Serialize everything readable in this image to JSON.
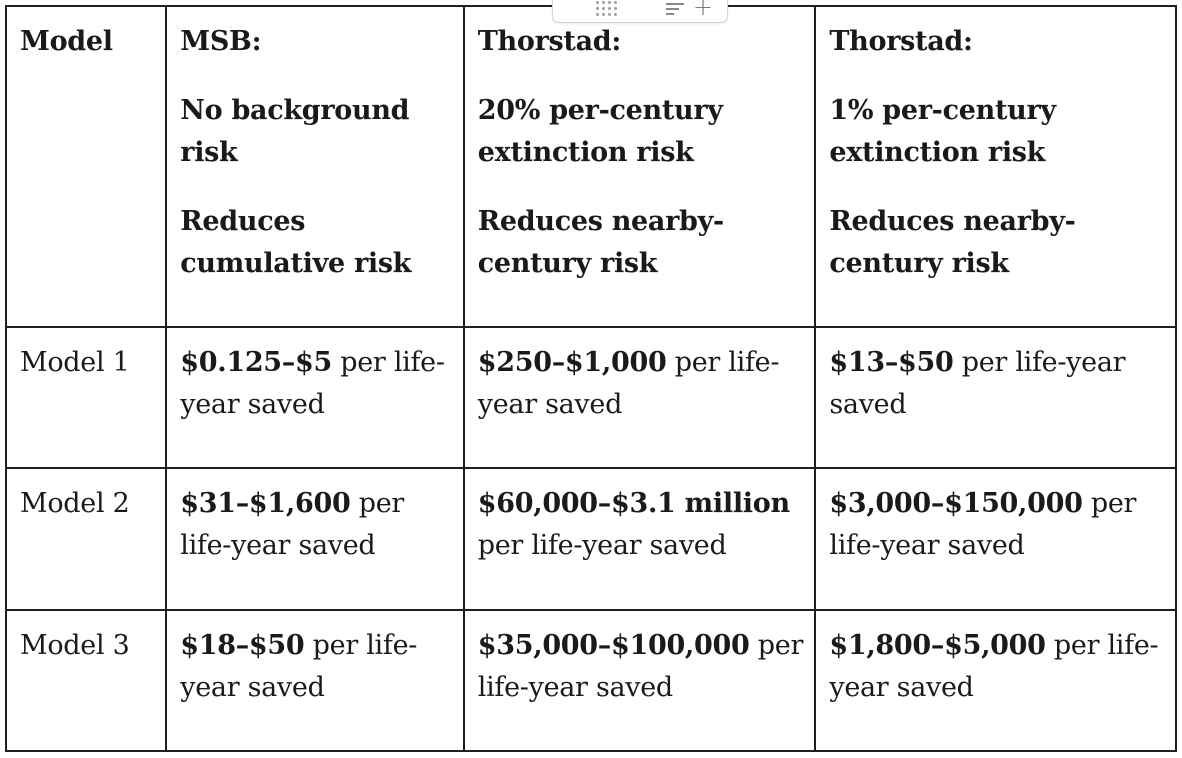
{
  "toolbar": {
    "drag_icon": "drag-handle-icon",
    "align_icon": "align-left-icon",
    "add_icon": "plus-icon",
    "add_glyph": "+"
  },
  "table": {
    "header": {
      "model": "Model",
      "msb": {
        "title": "MSB:",
        "line1": "No background risk",
        "line2": "Reduces cumulative risk"
      },
      "thorstad_20": {
        "title": "Thorstad:",
        "line1": "20% per-century extinction risk",
        "line2": "Reduces nearby-century risk"
      },
      "thorstad_1": {
        "title": "Thorstad:",
        "line1": "1% per-century extinction risk",
        "line2": "Reduces nearby-century risk"
      }
    },
    "rows": [
      {
        "label": "Model 1",
        "msb": {
          "bold": "$0.125–$5",
          "rest": " per life-year saved"
        },
        "thorstad_20": {
          "bold": "$250–$1,000",
          "rest": " per life-year saved"
        },
        "thorstad_1": {
          "bold": "$13–$50",
          "rest": " per life-year saved"
        }
      },
      {
        "label": "Model 2",
        "msb": {
          "bold": "$31–$1,600",
          "rest": " per life-year saved"
        },
        "thorstad_20": {
          "bold": "$60,000–$3.1 million",
          "rest": " per life-year saved"
        },
        "thorstad_1": {
          "bold": "$3,000–$150,000",
          "rest": " per life-year saved"
        }
      },
      {
        "label": "Model 3",
        "msb": {
          "bold": "$18–$50",
          "rest": " per life-year saved"
        },
        "thorstad_20": {
          "bold": "$35,000–$100,000",
          "rest": " per life-year saved"
        },
        "thorstad_1": {
          "bold": "$1,800–$5,000",
          "rest": " per life-year saved"
        }
      }
    ]
  }
}
